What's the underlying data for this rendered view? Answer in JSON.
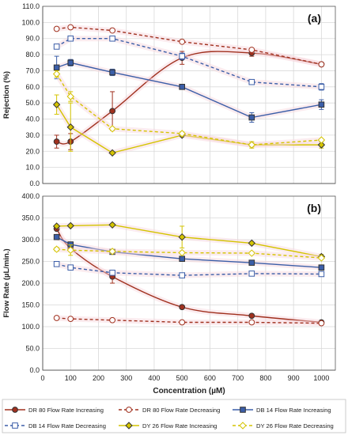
{
  "colors": {
    "dr80": "#a0301e",
    "db14": "#3b5ea8",
    "dy26": "#d4c400",
    "grid": "#d9d9d9",
    "axis": "#595959",
    "highlight": "#f7d5dc"
  },
  "x_axis": {
    "label": "Concentration (µM)",
    "ticks": [
      0,
      100,
      200,
      300,
      400,
      500,
      600,
      700,
      800,
      900,
      1000
    ],
    "tick_labels": [
      "0",
      "100",
      "200",
      "300",
      "400",
      "500",
      "600",
      "700",
      "800",
      "900",
      "1000"
    ],
    "range": [
      0,
      1050
    ]
  },
  "legend": [
    {
      "label": "DR 80 Flow Rate Increasing",
      "series": "dr80",
      "style": "solid",
      "marker": "circle",
      "filled": true
    },
    {
      "label": "DR 80 Flow Rate Decreasing",
      "series": "dr80",
      "style": "dashed",
      "marker": "circle",
      "filled": false
    },
    {
      "label": "DB 14 Flow Rate Increasing",
      "series": "db14",
      "style": "solid",
      "marker": "square",
      "filled": true
    },
    {
      "label": "DB 14 Flow Rate Decreasing",
      "series": "db14",
      "style": "dashed",
      "marker": "square",
      "filled": false
    },
    {
      "label": "DY 26 Flow Rate Increasing",
      "series": "dy26",
      "style": "solid",
      "marker": "diamond",
      "filled": true
    },
    {
      "label": "DY 26 Flow Rate Decreasing",
      "series": "dy26",
      "style": "dashed",
      "marker": "diamond",
      "filled": false
    }
  ],
  "chart_data": [
    {
      "type": "line",
      "panel_label": "(a)",
      "ylabel": "Rejection (%)",
      "ylim": [
        0,
        110
      ],
      "yticks": [
        0,
        10,
        20,
        30,
        40,
        50,
        60,
        70,
        80,
        90,
        100,
        110
      ],
      "ytick_labels": [
        "0.0",
        "10.0",
        "20.0",
        "30.0",
        "40.0",
        "50.0",
        "60.0",
        "70.0",
        "80.0",
        "90.0",
        "100.0",
        "110.0"
      ],
      "grid": true,
      "series": [
        {
          "name": "DR 80 Flow Rate Increasing",
          "color_key": "dr80",
          "dashed": false,
          "smooth": true,
          "marker": "circle",
          "filled": true,
          "x": [
            50,
            100,
            250,
            500,
            750,
            1000
          ],
          "y": [
            26,
            26,
            45,
            78,
            81,
            74
          ],
          "err": [
            4,
            5,
            12,
            4,
            2,
            1
          ]
        },
        {
          "name": "DR 80 Flow Rate Decreasing",
          "color_key": "dr80",
          "dashed": true,
          "smooth": false,
          "marker": "circle",
          "filled": false,
          "x": [
            50,
            100,
            250,
            500,
            750,
            1000
          ],
          "y": [
            96,
            97,
            95,
            88,
            83,
            74
          ],
          "err": [
            0,
            0,
            0,
            0,
            0,
            0
          ]
        },
        {
          "name": "DB 14 Flow Rate Increasing",
          "color_key": "db14",
          "dashed": false,
          "smooth": false,
          "marker": "square",
          "filled": true,
          "x": [
            50,
            100,
            250,
            500,
            750,
            1000
          ],
          "y": [
            72,
            75,
            69,
            60,
            41,
            49
          ],
          "err": [
            7,
            2,
            2,
            0,
            3,
            3
          ]
        },
        {
          "name": "DB 14 Flow Rate Decreasing",
          "color_key": "db14",
          "dashed": true,
          "smooth": false,
          "marker": "square",
          "filled": false,
          "x": [
            50,
            100,
            250,
            500,
            750,
            1000
          ],
          "y": [
            85,
            90,
            90,
            79,
            63,
            60
          ],
          "err": [
            0,
            0,
            0,
            2,
            0,
            2
          ]
        },
        {
          "name": "DY 26 Flow Rate Increasing",
          "color_key": "dy26",
          "dashed": false,
          "smooth": false,
          "marker": "diamond",
          "filled": true,
          "x": [
            50,
            100,
            250,
            500,
            750,
            1000
          ],
          "y": [
            49,
            35,
            19,
            30,
            24,
            24
          ],
          "err": [
            6,
            15,
            0,
            1,
            2,
            2
          ]
        },
        {
          "name": "DY 26 Flow Rate Decreasing",
          "color_key": "dy26",
          "dashed": true,
          "smooth": false,
          "marker": "diamond",
          "filled": false,
          "x": [
            50,
            100,
            250,
            500,
            750,
            1000
          ],
          "y": [
            68,
            54,
            34,
            31,
            24,
            27
          ],
          "err": [
            2,
            3,
            0,
            1,
            1,
            0
          ]
        }
      ]
    },
    {
      "type": "line",
      "panel_label": "(b)",
      "ylabel": "Flow Rate (µL/min.)",
      "ylim": [
        0,
        400
      ],
      "yticks": [
        0,
        50,
        100,
        150,
        200,
        250,
        300,
        350,
        400
      ],
      "ytick_labels": [
        "0.0",
        "50.0",
        "100.0",
        "150.0",
        "200.0",
        "250.0",
        "300.0",
        "350.0",
        "400.0"
      ],
      "grid": true,
      "series": [
        {
          "name": "DR 80 Flow Rate Increasing",
          "color_key": "dr80",
          "dashed": false,
          "smooth": true,
          "marker": "circle",
          "filled": true,
          "x": [
            50,
            100,
            250,
            500,
            750,
            1000
          ],
          "y": [
            325,
            280,
            215,
            145,
            125,
            110
          ],
          "err": [
            0,
            5,
            15,
            4,
            0,
            0
          ]
        },
        {
          "name": "DR 80 Flow Rate Decreasing",
          "color_key": "dr80",
          "dashed": true,
          "smooth": false,
          "marker": "circle",
          "filled": false,
          "x": [
            50,
            100,
            250,
            500,
            750,
            1000
          ],
          "y": [
            120,
            118,
            115,
            110,
            110,
            108
          ],
          "err": [
            0,
            0,
            0,
            0,
            0,
            0
          ]
        },
        {
          "name": "DB 14 Flow Rate Increasing",
          "color_key": "db14",
          "dashed": false,
          "smooth": false,
          "marker": "square",
          "filled": true,
          "x": [
            50,
            100,
            250,
            500,
            750,
            1000
          ],
          "y": [
            306,
            289,
            272,
            256,
            247,
            236
          ],
          "err": [
            0,
            3,
            2,
            0,
            0,
            0
          ]
        },
        {
          "name": "DB 14 Flow Rate Decreasing",
          "color_key": "db14",
          "dashed": true,
          "smooth": false,
          "marker": "square",
          "filled": false,
          "x": [
            50,
            100,
            250,
            500,
            750,
            1000
          ],
          "y": [
            244,
            236,
            224,
            218,
            222,
            221
          ],
          "err": [
            0,
            0,
            0,
            0,
            0,
            0
          ]
        },
        {
          "name": "DY 26 Flow Rate Increasing",
          "color_key": "dy26",
          "dashed": false,
          "smooth": false,
          "marker": "diamond",
          "filled": true,
          "x": [
            50,
            100,
            250,
            500,
            750,
            1000
          ],
          "y": [
            331,
            332,
            334,
            306,
            292,
            261
          ],
          "err": [
            0,
            0,
            0,
            25,
            0,
            5
          ]
        },
        {
          "name": "DY 26 Flow Rate Decreasing",
          "color_key": "dy26",
          "dashed": true,
          "smooth": false,
          "marker": "diamond",
          "filled": false,
          "x": [
            50,
            100,
            250,
            500,
            750,
            1000
          ],
          "y": [
            278,
            276,
            273,
            270,
            269,
            258
          ],
          "err": [
            4,
            12,
            0,
            0,
            0,
            0
          ]
        }
      ]
    }
  ]
}
